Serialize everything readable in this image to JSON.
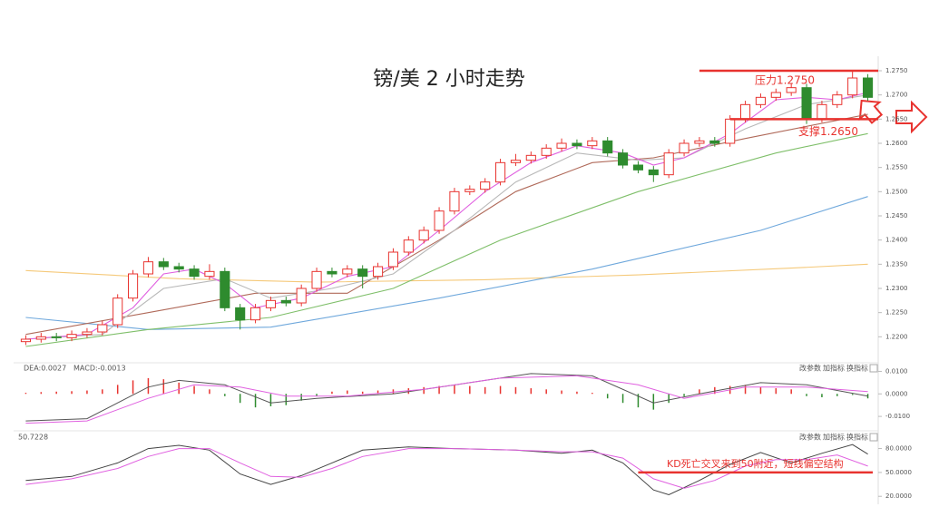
{
  "chart_data": {
    "type": "candlestick",
    "title": "镑/美 2 小时走势",
    "open": [
      1.219,
      1.2195,
      1.22,
      1.2198,
      1.2205,
      1.221,
      1.2225,
      1.228,
      1.233,
      1.2355,
      1.2345,
      1.234,
      1.2325,
      1.2335,
      1.226,
      1.2235,
      1.226,
      1.2275,
      1.227,
      1.23,
      1.2335,
      1.233,
      1.234,
      1.2325,
      1.2345,
      1.2375,
      1.24,
      1.242,
      1.246,
      1.25,
      1.2505,
      1.252,
      1.256,
      1.2565,
      1.2575,
      1.259,
      1.26,
      1.2595,
      1.2605,
      1.258,
      1.2555,
      1.2545,
      1.2535,
      1.258,
      1.26,
      1.2605,
      1.26,
      1.265,
      1.268,
      1.2695,
      1.2705,
      1.2715,
      1.265,
      1.268,
      1.27,
      1.2735
    ],
    "high": [
      1.2203,
      1.2208,
      1.2208,
      1.2213,
      1.2218,
      1.2233,
      1.2288,
      1.2338,
      1.2365,
      1.2363,
      1.2353,
      1.2348,
      1.235,
      1.2343,
      1.2268,
      1.2268,
      1.2283,
      1.2283,
      1.2308,
      1.2343,
      1.2343,
      1.2348,
      1.2348,
      1.2353,
      1.2383,
      1.2408,
      1.2428,
      1.2468,
      1.2508,
      1.2513,
      1.2528,
      1.2568,
      1.2578,
      1.2583,
      1.2598,
      1.261,
      1.2608,
      1.2613,
      1.2613,
      1.2588,
      1.2563,
      1.2553,
      1.2588,
      1.2608,
      1.2613,
      1.2613,
      1.2658,
      1.2688,
      1.2703,
      1.2713,
      1.2723,
      1.2723,
      1.2688,
      1.2708,
      1.2748,
      1.2743
    ],
    "low": [
      1.2183,
      1.2188,
      1.2191,
      1.2191,
      1.2198,
      1.2203,
      1.2218,
      1.2273,
      1.2323,
      1.2338,
      1.2333,
      1.2318,
      1.2318,
      1.2253,
      1.2215,
      1.2228,
      1.2253,
      1.2263,
      1.2263,
      1.2293,
      1.2323,
      1.2323,
      1.23,
      1.2318,
      1.2338,
      1.2368,
      1.2393,
      1.2413,
      1.2453,
      1.2493,
      1.2498,
      1.2513,
      1.2553,
      1.2558,
      1.2568,
      1.2583,
      1.2588,
      1.2588,
      1.2573,
      1.2548,
      1.2538,
      1.252,
      1.2528,
      1.2573,
      1.2593,
      1.2593,
      1.2593,
      1.2643,
      1.2673,
      1.2688,
      1.2698,
      1.264,
      1.2643,
      1.2673,
      1.2693,
      1.2688
    ],
    "close": [
      1.2195,
      1.22,
      1.2198,
      1.2205,
      1.221,
      1.2225,
      1.228,
      1.233,
      1.2355,
      1.2345,
      1.234,
      1.2325,
      1.2335,
      1.226,
      1.2235,
      1.226,
      1.2275,
      1.227,
      1.23,
      1.2335,
      1.233,
      1.234,
      1.2325,
      1.2345,
      1.2375,
      1.24,
      1.242,
      1.246,
      1.25,
      1.2505,
      1.252,
      1.256,
      1.2565,
      1.2575,
      1.259,
      1.26,
      1.2595,
      1.2605,
      1.258,
      1.2555,
      1.2545,
      1.2535,
      1.258,
      1.26,
      1.2605,
      1.26,
      1.265,
      1.268,
      1.2695,
      1.2705,
      1.2715,
      1.265,
      1.268,
      1.27,
      1.2735,
      1.2695
    ],
    "up_color": "#e8332f",
    "down_color": "#2e8b2e",
    "ylim": [
      1.215,
      1.278
    ],
    "yticks": [
      {
        "value": 1.22,
        "label": "1.2200"
      },
      {
        "value": 1.225,
        "label": "1.2250"
      },
      {
        "value": 1.23,
        "label": "1.2300"
      },
      {
        "value": 1.235,
        "label": "1.2350"
      },
      {
        "value": 1.24,
        "label": "1.2400"
      },
      {
        "value": 1.245,
        "label": "1.2450"
      },
      {
        "value": 1.25,
        "label": "1.2500"
      },
      {
        "value": 1.255,
        "label": "1.2550"
      },
      {
        "value": 1.26,
        "label": "1.2600"
      },
      {
        "value": 1.265,
        "label": "1.2650"
      },
      {
        "value": 1.27,
        "label": "1.2700"
      },
      {
        "value": 1.275,
        "label": "1.2750"
      }
    ],
    "series": [
      {
        "color": "#f5c97a",
        "x": [
          0,
          10,
          19,
          30,
          40,
          50,
          55
        ],
        "values": [
          1.2337,
          1.232,
          1.2313,
          1.2318,
          1.2328,
          1.2342,
          1.235
        ]
      },
      {
        "color": "#6fa8dc",
        "x": [
          0,
          8,
          16,
          27,
          37,
          48,
          55
        ],
        "values": [
          1.224,
          1.2215,
          1.222,
          1.228,
          1.234,
          1.242,
          1.249
        ]
      },
      {
        "color": "#7fbf6a",
        "x": [
          0,
          8,
          16,
          24,
          31,
          40,
          49,
          55
        ],
        "values": [
          1.218,
          1.2215,
          1.224,
          1.23,
          1.24,
          1.25,
          1.258,
          1.262
        ]
      },
      {
        "color": "#b06a5a",
        "x": [
          0,
          8,
          15,
          21,
          27,
          32,
          37,
          41,
          47,
          55
        ],
        "values": [
          1.2205,
          1.225,
          1.229,
          1.229,
          1.24,
          1.25,
          1.256,
          1.257,
          1.261,
          1.266
        ]
      },
      {
        "color": "#b8b8b8",
        "x": [
          0,
          5,
          9,
          13,
          16,
          20,
          24,
          28,
          32,
          36,
          40,
          43,
          47,
          51,
          55
        ],
        "values": [
          1.2195,
          1.2205,
          1.23,
          1.232,
          1.228,
          1.23,
          1.233,
          1.242,
          1.252,
          1.258,
          1.2565,
          1.257,
          1.263,
          1.268,
          1.27
        ]
      },
      {
        "color": "#e060e0",
        "x": [
          0,
          4,
          7,
          9,
          11,
          13,
          15,
          18,
          21,
          24,
          27,
          30,
          33,
          36,
          39,
          41,
          43,
          46,
          49,
          51,
          53,
          55
        ],
        "values": [
          1.2195,
          1.2205,
          1.226,
          1.233,
          1.234,
          1.231,
          1.226,
          1.228,
          1.2325,
          1.2345,
          1.242,
          1.25,
          1.256,
          1.2595,
          1.258,
          1.2555,
          1.257,
          1.262,
          1.269,
          1.2695,
          1.269,
          1.2705
        ]
      }
    ],
    "levels": [
      {
        "label": "压力1.2750",
        "value": 1.275,
        "from": 44
      },
      {
        "label": "支撑1.2650",
        "value": 1.265,
        "from": 46
      }
    ],
    "macd": {
      "labels": [
        "DEA:0.0027",
        "MACD:-0.0013"
      ],
      "ylim": [
        -0.016,
        0.013
      ],
      "yticks": [
        {
          "value": 0.01,
          "label": "0.0100"
        },
        {
          "value": 0,
          "label": "0.0000"
        },
        {
          "value": -0.01,
          "label": "-0.0100"
        }
      ],
      "hist": [
        0.0005,
        0.0008,
        0.001,
        0.0012,
        0.0015,
        0.002,
        0.004,
        0.006,
        0.007,
        0.0065,
        0.005,
        0.0035,
        0.002,
        -0.001,
        -0.004,
        -0.006,
        -0.0055,
        -0.005,
        -0.003,
        -0.001,
        0.001,
        0.0015,
        0.001,
        0.0015,
        0.002,
        0.0025,
        0.003,
        0.0035,
        0.004,
        0.0035,
        0.003,
        0.0035,
        0.003,
        0.0025,
        0.002,
        0.0015,
        0.001,
        0.0005,
        -0.002,
        -0.004,
        -0.006,
        -0.007,
        -0.004,
        -0.001,
        0.002,
        0.003,
        0.0035,
        0.004,
        0.003,
        0.0025,
        0.002,
        -0.001,
        -0.0015,
        -0.001,
        -0.0005,
        -0.002
      ],
      "lines": [
        {
          "color": "#555",
          "x": [
            0,
            4,
            8,
            10,
            13,
            16,
            19,
            24,
            29,
            33,
            37,
            41,
            44,
            48,
            51,
            55
          ],
          "values": [
            -0.012,
            -0.011,
            0.003,
            0.006,
            0.004,
            -0.004,
            -0.002,
            0.0,
            0.005,
            0.009,
            0.008,
            -0.004,
            0.0,
            0.005,
            0.004,
            -0.001
          ]
        },
        {
          "color": "#e060e0",
          "x": [
            0,
            4,
            8,
            11,
            14,
            17,
            21,
            26,
            31,
            36,
            40,
            43,
            47,
            51,
            55
          ],
          "values": [
            -0.013,
            -0.012,
            -0.002,
            0.004,
            0.003,
            -0.001,
            -0.001,
            0.002,
            0.007,
            0.008,
            0.004,
            -0.002,
            0.003,
            0.003,
            0.001
          ]
        }
      ]
    },
    "kd": {
      "label": "50.7228",
      "ylim": [
        10,
        100
      ],
      "yticks": [
        {
          "value": 80,
          "label": "80.0000"
        },
        {
          "value": 50,
          "label": "50.0000"
        },
        {
          "value": 20,
          "label": "20.0000"
        }
      ],
      "level": 50,
      "level_from": 40,
      "annotation": "KD死亡交叉来到50附近，短线偏空结构",
      "lines": [
        {
          "color": "#444",
          "x": [
            0,
            3,
            6,
            8,
            10,
            12,
            14,
            16,
            18,
            20,
            22,
            25,
            28,
            32,
            35,
            37,
            39,
            41,
            42,
            44,
            46,
            48,
            50,
            52,
            54,
            55
          ],
          "values": [
            40,
            45,
            62,
            80,
            84,
            78,
            48,
            35,
            46,
            62,
            78,
            82,
            80,
            78,
            74,
            78,
            62,
            28,
            22,
            40,
            60,
            75,
            62,
            74,
            85,
            73
          ]
        },
        {
          "color": "#e060e0",
          "x": [
            0,
            3,
            6,
            8,
            10,
            12,
            14,
            16,
            18,
            20,
            22,
            25,
            28,
            32,
            35,
            37,
            39,
            41,
            43,
            45,
            47,
            49,
            51,
            53,
            55
          ],
          "values": [
            35,
            42,
            55,
            70,
            80,
            80,
            62,
            45,
            44,
            55,
            70,
            80,
            80,
            78,
            76,
            76,
            68,
            42,
            30,
            40,
            58,
            66,
            66,
            72,
            58
          ]
        }
      ]
    },
    "buttons": [
      "改参数",
      "加指标",
      "换指标"
    ]
  }
}
